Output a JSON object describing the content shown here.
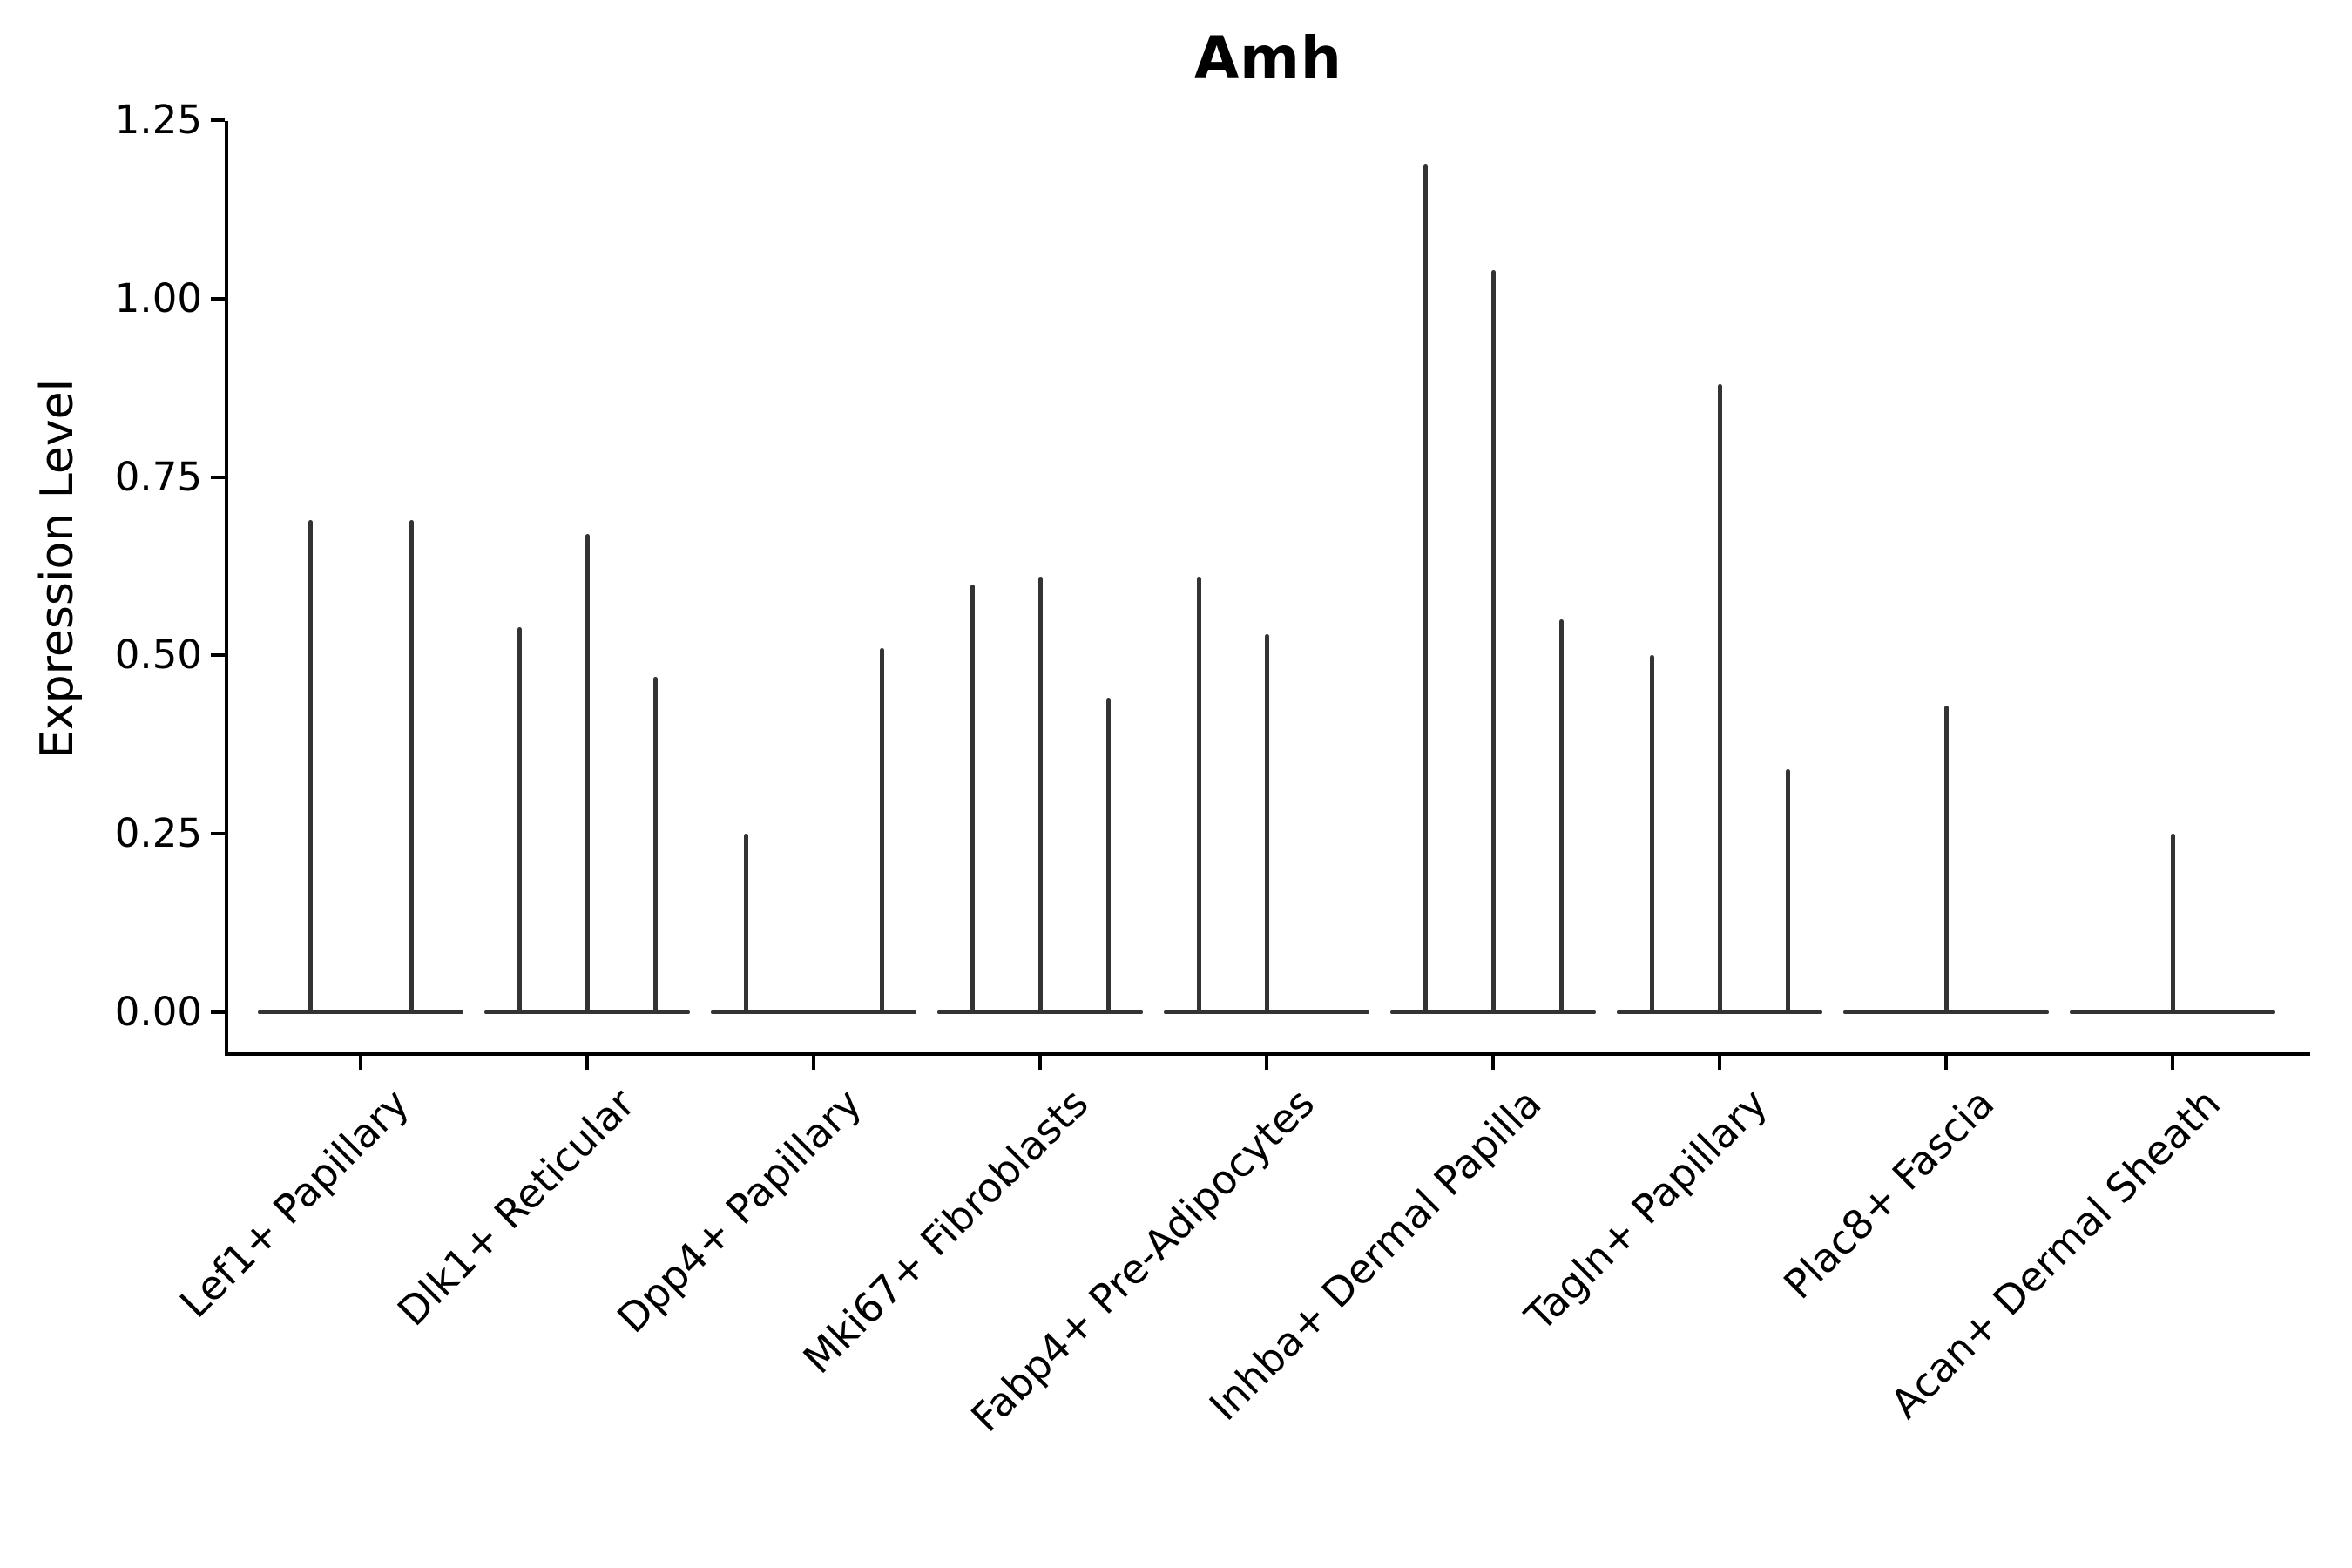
{
  "page": {
    "background": "#ffffff"
  },
  "chart_data": {
    "type": "violin",
    "title": "Amh",
    "xlabel": "",
    "ylabel": "Expression Level",
    "ylim": [
      0,
      1.25
    ],
    "grid": false,
    "legend": "none",
    "ink_color": "#333333",
    "axis_color": "#000000",
    "text_color": "#000000",
    "y_tick_labels": [
      "0.00",
      "0.25",
      "0.50",
      "0.75",
      "1.00",
      "1.25"
    ],
    "y_tick_values": [
      0,
      0.25,
      0.5,
      0.75,
      1.0,
      1.25
    ],
    "categories": [
      "Lef1+ Papillary",
      "Dlk1+ Reticular",
      "Dpp4+ Papillary",
      "Mki67+ Fibroblasts",
      "Fabp4+ Pre-Adipocytes",
      "Inhba+ Dermal Papilla",
      "Tagln+ Papillary",
      "Plac8+ Fascia",
      "Acan+ Dermal Sheath"
    ],
    "violins": [
      {
        "category": "Lef1+ Papillary",
        "spikes": [
          {
            "offset": -58,
            "max": 0.69
          },
          {
            "offset": 58,
            "max": 0.69
          }
        ]
      },
      {
        "category": "Dlk1+ Reticular",
        "spikes": [
          {
            "offset": -78,
            "max": 0.54
          },
          {
            "offset": 0,
            "max": 0.67
          },
          {
            "offset": 78,
            "max": 0.47
          }
        ]
      },
      {
        "category": "Dpp4+ Papillary",
        "spikes": [
          {
            "offset": -78,
            "max": 0.25
          },
          {
            "offset": 78,
            "max": 0.51
          }
        ]
      },
      {
        "category": "Mki67+ Fibroblasts",
        "spikes": [
          {
            "offset": -78,
            "max": 0.6
          },
          {
            "offset": 0,
            "max": 0.61
          },
          {
            "offset": 78,
            "max": 0.44
          }
        ]
      },
      {
        "category": "Fabp4+ Pre-Adipocytes",
        "spikes": [
          {
            "offset": -78,
            "max": 0.61
          },
          {
            "offset": 0,
            "max": 0.53
          }
        ]
      },
      {
        "category": "Inhba+ Dermal Papilla",
        "spikes": [
          {
            "offset": -78,
            "max": 1.19
          },
          {
            "offset": 0,
            "max": 1.04
          },
          {
            "offset": 78,
            "max": 0.55
          }
        ]
      },
      {
        "category": "Tagln+ Papillary",
        "spikes": [
          {
            "offset": -78,
            "max": 0.5
          },
          {
            "offset": 0,
            "max": 0.88
          },
          {
            "offset": 78,
            "max": 0.34
          }
        ]
      },
      {
        "category": "Plac8+ Fascia",
        "spikes": [
          {
            "offset": 0,
            "max": 0.43
          }
        ]
      },
      {
        "category": "Acan+ Dermal Sheath",
        "spikes": [
          {
            "offset": 0,
            "max": 0.25
          }
        ]
      }
    ]
  }
}
